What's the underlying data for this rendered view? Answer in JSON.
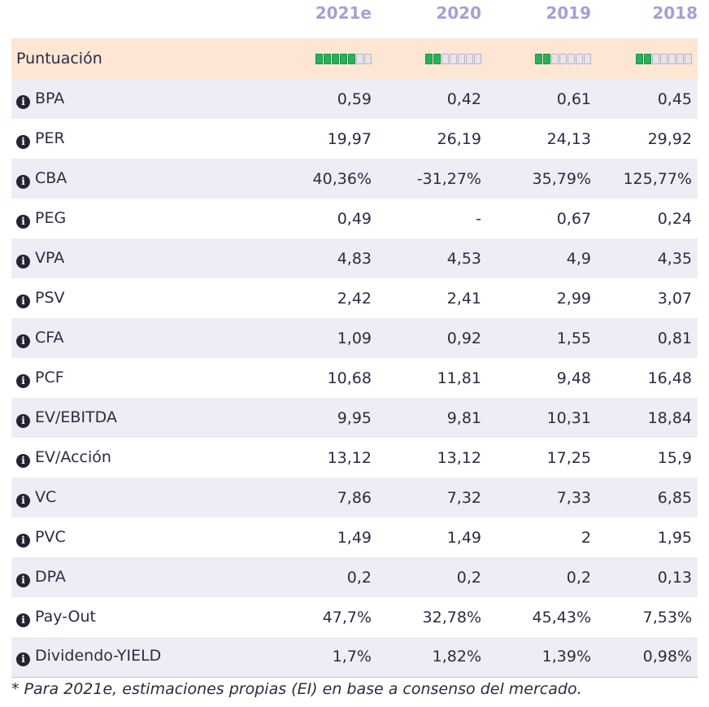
{
  "header": {
    "columns": [
      "2021e",
      "2020",
      "2019",
      "2018"
    ],
    "accent_color": "#a79fd4"
  },
  "score_row": {
    "label": "Puntuación",
    "ratings": [
      {
        "filled": 5,
        "total": 7
      },
      {
        "filled": 2,
        "total": 7
      },
      {
        "filled": 2,
        "total": 7
      },
      {
        "filled": 2,
        "total": 7
      }
    ]
  },
  "rows": [
    {
      "label": "BPA",
      "values": [
        "0,59",
        "0,42",
        "0,61",
        "0,45"
      ]
    },
    {
      "label": "PER",
      "values": [
        "19,97",
        "26,19",
        "24,13",
        "29,92"
      ]
    },
    {
      "label": "CBA",
      "values": [
        "40,36%",
        "-31,27%",
        "35,79%",
        "125,77%"
      ]
    },
    {
      "label": "PEG",
      "values": [
        "0,49",
        "-",
        "0,67",
        "0,24"
      ]
    },
    {
      "label": "VPA",
      "values": [
        "4,83",
        "4,53",
        "4,9",
        "4,35"
      ]
    },
    {
      "label": "PSV",
      "values": [
        "2,42",
        "2,41",
        "2,99",
        "3,07"
      ]
    },
    {
      "label": "CFA",
      "values": [
        "1,09",
        "0,92",
        "1,55",
        "0,81"
      ]
    },
    {
      "label": "PCF",
      "values": [
        "10,68",
        "11,81",
        "9,48",
        "16,48"
      ]
    },
    {
      "label": "EV/EBITDA",
      "values": [
        "9,95",
        "9,81",
        "10,31",
        "18,84"
      ]
    },
    {
      "label": "EV/Acción",
      "values": [
        "13,12",
        "13,12",
        "17,25",
        "15,9"
      ]
    },
    {
      "label": "VC",
      "values": [
        "7,86",
        "7,32",
        "7,33",
        "6,85"
      ]
    },
    {
      "label": "PVC",
      "values": [
        "1,49",
        "1,49",
        "2",
        "1,95"
      ]
    },
    {
      "label": "DPA",
      "values": [
        "0,2",
        "0,2",
        "0,2",
        "0,13"
      ]
    },
    {
      "label": "Pay-Out",
      "values": [
        "47,7%",
        "32,78%",
        "45,43%",
        "7,53%"
      ]
    },
    {
      "label": "Dividendo-YIELD",
      "values": [
        "1,7%",
        "1,82%",
        "1,39%",
        "0,98%"
      ]
    }
  ],
  "footnote": "* Para 2021e, estimaciones propias (EI) en base a consenso del mercado.",
  "icons": {
    "info": "info-circle-icon"
  }
}
